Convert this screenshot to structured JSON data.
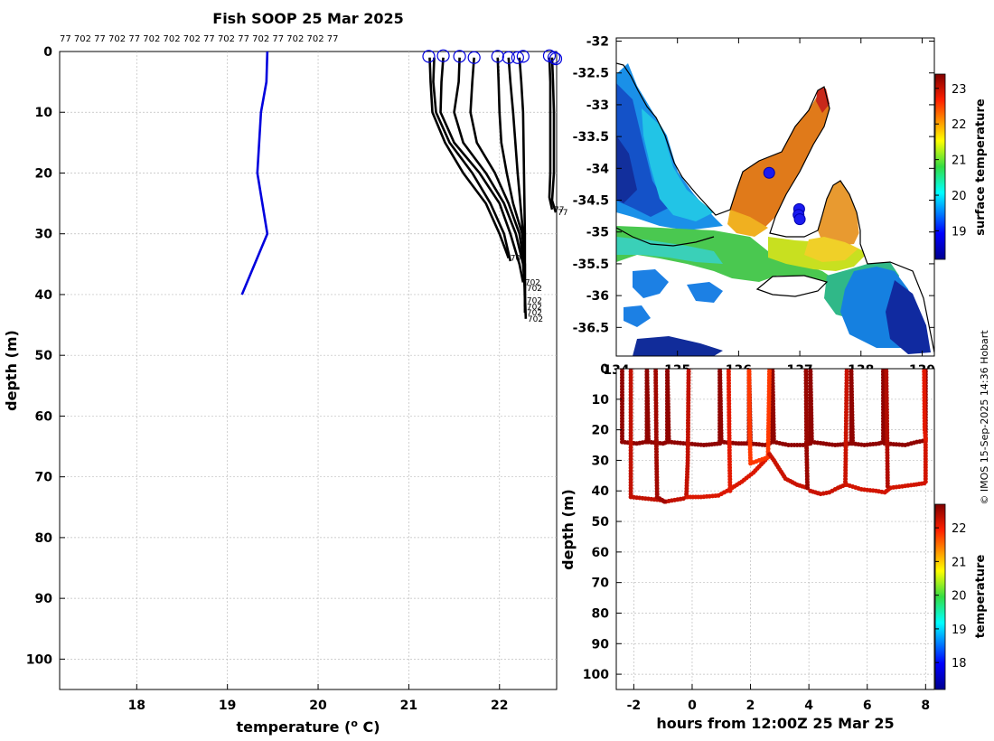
{
  "figure": {
    "title": "Fish SOOP 25 Mar 2025",
    "credit": "© IMOS 15-Sep-2025 14:36 Hobart"
  },
  "colors": {
    "axes_bg": "#ffffff",
    "grid": "#bdbdbd",
    "reference_profile": "#0000dd",
    "profiles": "#000000",
    "profile_start_marker": "#0000dd",
    "fish_position": "#1a1af0",
    "coastline": "#000000"
  },
  "chart_data": [
    {
      "type": "line",
      "id": "profiles",
      "xlabel": "temperature (° C)",
      "ylabel": "depth (m)",
      "xlim": [
        17.15,
        22.63
      ],
      "ylim": [
        105,
        0
      ],
      "xticks": [
        18,
        19,
        20,
        21,
        22
      ],
      "yticks": [
        0,
        10,
        20,
        30,
        40,
        50,
        60,
        70,
        80,
        90,
        100
      ],
      "grid": true,
      "top_labels": "77 702 77 702 77 702 702 702 77 702 77 702 77 702 702 77",
      "reference_profile": {
        "depth": [
          0,
          5,
          10,
          20,
          30,
          40
        ],
        "temperature": [
          19.44,
          19.43,
          19.37,
          19.33,
          19.44,
          19.16
        ]
      },
      "start_markers": [
        {
          "x": 21.22,
          "y": 0.8
        },
        {
          "x": 21.38,
          "y": 0.7
        },
        {
          "x": 21.56,
          "y": 0.8
        },
        {
          "x": 21.72,
          "y": 1.0
        },
        {
          "x": 21.98,
          "y": 0.8
        },
        {
          "x": 22.1,
          "y": 1.0
        },
        {
          "x": 22.2,
          "y": 1.0
        },
        {
          "x": 22.26,
          "y": 0.8
        },
        {
          "x": 22.55,
          "y": 0.7
        },
        {
          "x": 22.6,
          "y": 1.0
        },
        {
          "x": 22.62,
          "y": 1.2
        }
      ],
      "series": [
        {
          "tag": "702",
          "depth": [
            1,
            5,
            10,
            15,
            20,
            25,
            30,
            34
          ],
          "temperature": [
            21.23,
            21.24,
            21.26,
            21.4,
            21.6,
            21.85,
            22.0,
            22.1
          ],
          "end_label": "702"
        },
        {
          "tag": "77",
          "depth": [
            1,
            5,
            10,
            15,
            20,
            25,
            30,
            34.5
          ],
          "temperature": [
            21.28,
            21.27,
            21.3,
            21.45,
            21.7,
            21.9,
            22.05,
            22.12
          ],
          "end_label": ""
        },
        {
          "tag": "702",
          "depth": [
            1,
            5,
            10,
            15,
            20,
            25,
            30,
            35,
            38
          ],
          "temperature": [
            21.38,
            21.36,
            21.35,
            21.5,
            21.78,
            22.0,
            22.12,
            22.22,
            22.26
          ],
          "end_label": "702"
        },
        {
          "tag": "77",
          "depth": [
            1,
            5,
            10,
            15,
            20,
            25,
            30,
            35,
            39
          ],
          "temperature": [
            21.56,
            21.55,
            21.5,
            21.6,
            21.85,
            22.05,
            22.18,
            22.26,
            22.28
          ],
          "end_label": "702"
        },
        {
          "tag": "702",
          "depth": [
            1,
            5,
            10,
            15,
            20,
            25,
            30,
            35,
            41
          ],
          "temperature": [
            21.72,
            21.7,
            21.68,
            21.75,
            21.95,
            22.1,
            22.22,
            22.27,
            22.28
          ],
          "end_label": "702"
        },
        {
          "tag": "77",
          "depth": [
            1,
            5,
            10,
            15,
            20,
            25,
            30,
            35,
            42
          ],
          "temperature": [
            21.98,
            21.99,
            22.0,
            22.02,
            22.08,
            22.15,
            22.25,
            22.28,
            22.28
          ],
          "end_label": "702"
        },
        {
          "tag": "702",
          "depth": [
            1,
            5,
            10,
            20,
            30,
            38,
            43
          ],
          "temperature": [
            22.1,
            22.12,
            22.15,
            22.2,
            22.26,
            22.28,
            22.28
          ],
          "end_label": "702"
        },
        {
          "tag": "77",
          "depth": [
            1,
            5,
            10,
            20,
            30,
            40,
            44
          ],
          "temperature": [
            22.22,
            22.24,
            22.26,
            22.27,
            22.28,
            22.28,
            22.29
          ],
          "end_label": "702"
        },
        {
          "tag": "77",
          "depth": [
            1,
            5,
            10,
            20,
            24,
            26
          ],
          "temperature": [
            22.55,
            22.56,
            22.56,
            22.56,
            22.55,
            22.58
          ],
          "end_label": "77"
        },
        {
          "tag": "77",
          "depth": [
            1,
            5,
            10,
            20,
            24.5,
            26.5
          ],
          "temperature": [
            22.58,
            22.59,
            22.6,
            22.6,
            22.58,
            22.62
          ],
          "end_label": "77"
        }
      ]
    },
    {
      "type": "heatmap",
      "id": "map",
      "xlim": [
        134,
        139.2
      ],
      "ylim": [
        -36.95,
        -31.95
      ],
      "xtick_labels": [
        "134",
        "135",
        "136",
        "137",
        "138",
        "139"
      ],
      "yticks": [
        -32,
        -32.5,
        -33,
        -33.5,
        -34,
        -34.5,
        -35,
        -35.5,
        -36,
        -36.5
      ],
      "colorbar": {
        "label": "surface temperature",
        "range": [
          18.2,
          23.4
        ],
        "ticks": [
          19,
          20,
          21,
          22,
          23
        ]
      },
      "fish_positions": [
        {
          "lon": 136.5,
          "lat": -34.07
        },
        {
          "lon": 136.99,
          "lat": -34.64
        },
        {
          "lon": 136.98,
          "lat": -34.73
        },
        {
          "lon": 137.0,
          "lat": -34.8
        }
      ]
    },
    {
      "type": "scatter",
      "id": "dives",
      "xlabel": "hours from 12:00Z 25 Mar 25",
      "ylabel": "depth (m)",
      "xlim": [
        -2.6,
        8.3
      ],
      "ylim": [
        105,
        0
      ],
      "xticks": [
        -2,
        0,
        2,
        4,
        6,
        8
      ],
      "yticks": [
        0,
        10,
        20,
        30,
        40,
        50,
        60,
        70,
        80,
        90,
        100
      ],
      "colorbar": {
        "label": "temperature",
        "range": [
          17.2,
          22.7
        ],
        "ticks": [
          18,
          19,
          20,
          21,
          22
        ]
      },
      "tracks": [
        {
          "points": [
            [
              -2.4,
              0
            ],
            [
              -2.4,
              24
            ],
            [
              -1.9,
              24.5
            ],
            [
              -1.6,
              24
            ],
            [
              -1.55,
              24
            ],
            [
              -1.55,
              0
            ],
            [
              -1.5,
              24
            ],
            [
              -1.0,
              24.5
            ],
            [
              -0.85,
              24
            ],
            [
              -0.85,
              0
            ],
            [
              -0.8,
              24
            ],
            [
              -0.2,
              24.5
            ],
            [
              0.4,
              25
            ],
            [
              0.95,
              24.5
            ],
            [
              0.95,
              0
            ],
            [
              1.0,
              24
            ],
            [
              1.6,
              24.5
            ],
            [
              1.95,
              24.5
            ],
            [
              1.95,
              0
            ],
            [
              2.0,
              24.5
            ],
            [
              2.5,
              25
            ],
            [
              2.75,
              24
            ],
            [
              2.75,
              0
            ],
            [
              2.8,
              24
            ],
            [
              3.3,
              25
            ],
            [
              3.8,
              25
            ],
            [
              4.05,
              24.5
            ],
            [
              4.05,
              0
            ],
            [
              4.1,
              24
            ],
            [
              4.9,
              25
            ],
            [
              5.45,
              24.5
            ],
            [
              5.45,
              0
            ],
            [
              5.5,
              24.5
            ],
            [
              5.9,
              25
            ],
            [
              6.4,
              24.5
            ],
            [
              6.55,
              24
            ],
            [
              6.55,
              0
            ],
            [
              6.6,
              24.5
            ],
            [
              7.3,
              25
            ],
            [
              7.7,
              24
            ],
            [
              8.0,
              23.5
            ],
            [
              8.0,
              0
            ]
          ],
          "temperature": 22.6
        },
        {
          "points": [
            [
              -2.1,
              0
            ],
            [
              -2.1,
              42
            ],
            [
              -1.6,
              42.5
            ],
            [
              -1.1,
              43
            ],
            [
              -0.9,
              43.5
            ],
            [
              -0.3,
              42.5
            ],
            [
              -0.2,
              42
            ],
            [
              -0.15,
              30
            ],
            [
              -0.12,
              0
            ]
          ],
          "temperature": 22.3
        },
        {
          "points": [
            [
              -1.25,
              0
            ],
            [
              -1.22,
              30
            ],
            [
              -1.2,
              42
            ],
            [
              -0.95,
              43.5
            ]
          ],
          "temperature": 22.5
        },
        {
          "points": [
            [
              -0.15,
              42
            ],
            [
              0.3,
              42
            ],
            [
              0.9,
              41.5
            ],
            [
              1.2,
              40
            ],
            [
              1.7,
              37
            ],
            [
              2.1,
              34
            ],
            [
              2.5,
              30
            ],
            [
              2.65,
              28
            ]
          ],
          "temperature": 22.15
        },
        {
          "points": [
            [
              1.25,
              0
            ],
            [
              1.27,
              20
            ],
            [
              1.3,
              40
            ]
          ],
          "temperature": 22.1
        },
        {
          "points": [
            [
              1.95,
              0
            ],
            [
              1.97,
              20
            ],
            [
              2.0,
              31
            ],
            [
              2.3,
              30
            ],
            [
              2.6,
              29
            ],
            [
              2.65,
              0
            ]
          ],
          "temperature": 21.8
        },
        {
          "points": [
            [
              2.65,
              28
            ],
            [
              2.8,
              30
            ],
            [
              3.2,
              36
            ],
            [
              3.6,
              38
            ],
            [
              3.95,
              39
            ],
            [
              4.05,
              40
            ],
            [
              4.4,
              41
            ],
            [
              4.7,
              40.5
            ],
            [
              5.0,
              39
            ],
            [
              5.25,
              38
            ],
            [
              5.3,
              0
            ]
          ],
          "temperature": 22.25
        },
        {
          "points": [
            [
              3.9,
              0
            ],
            [
              3.92,
              25
            ],
            [
              3.95,
              39
            ]
          ],
          "temperature": 22.55
        },
        {
          "points": [
            [
              5.3,
              38
            ],
            [
              5.8,
              39.5
            ],
            [
              6.3,
              40
            ],
            [
              6.6,
              40.5
            ],
            [
              6.8,
              39
            ],
            [
              7.2,
              38.5
            ],
            [
              7.6,
              38
            ],
            [
              7.95,
              37.5
            ],
            [
              8.0,
              37
            ],
            [
              8.0,
              23
            ]
          ],
          "temperature": 22.2
        },
        {
          "points": [
            [
              6.65,
              0
            ],
            [
              6.68,
              20
            ],
            [
              6.7,
              38.5
            ]
          ],
          "temperature": 22.4
        },
        {
          "points": [
            [
              7.95,
              0
            ],
            [
              7.97,
              20
            ],
            [
              8.0,
              23
            ]
          ],
          "temperature": 22.1
        }
      ]
    }
  ]
}
